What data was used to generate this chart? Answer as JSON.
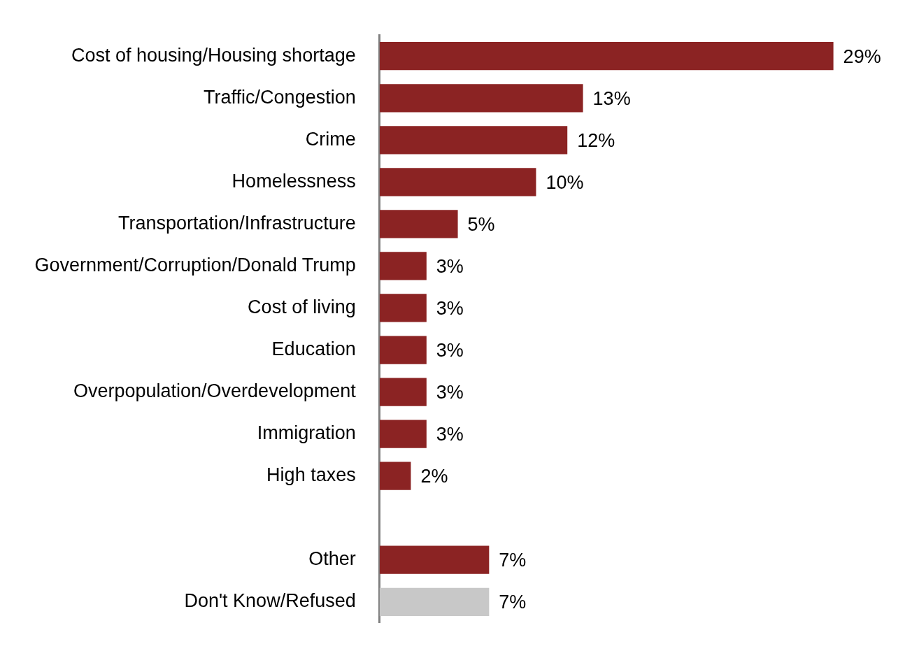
{
  "chart_data": {
    "type": "bar",
    "orientation": "horizontal",
    "categories": [
      "Cost of housing/Housing shortage",
      "Traffic/Congestion",
      "Crime",
      "Homelessness",
      "Transportation/Infrastructure",
      "Government/Corruption/Donald Trump",
      "Cost of living",
      "Education",
      "Overpopulation/Overdevelopment",
      "Immigration",
      "High taxes",
      null,
      "Other",
      "Don't Know/Refused"
    ],
    "values": [
      29,
      13,
      12,
      10,
      5,
      3,
      3,
      3,
      3,
      3,
      2,
      null,
      7,
      7
    ],
    "colors": [
      "#8b2323",
      "#8b2323",
      "#8b2323",
      "#8b2323",
      "#8b2323",
      "#8b2323",
      "#8b2323",
      "#8b2323",
      "#8b2323",
      "#8b2323",
      "#8b2323",
      "#8b2323",
      "#8b2323",
      "#c8c8c8"
    ],
    "value_labels": [
      "29%",
      "13%",
      "12%",
      "10%",
      "5%",
      "3%",
      "3%",
      "3%",
      "3%",
      "3%",
      "2%",
      null,
      "7%",
      "7%"
    ],
    "tick_labels": "y",
    "legend": false
  }
}
